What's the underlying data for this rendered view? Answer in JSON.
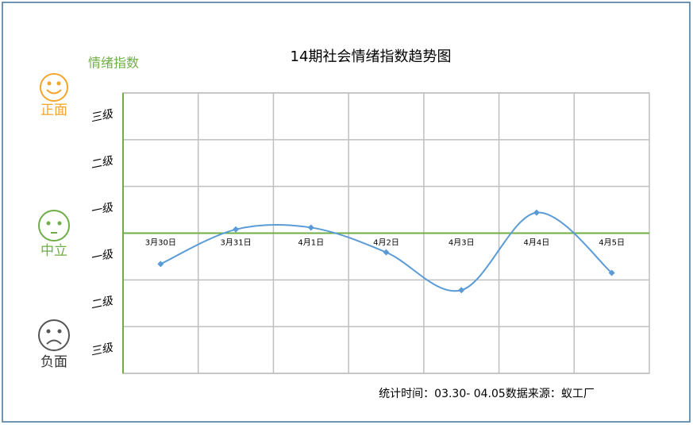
{
  "chart_data": {
    "type": "line",
    "title": "14期社会情绪指数趋势图",
    "y_label": "情绪指数",
    "side_labels": [
      "正面",
      "中立",
      "负面"
    ],
    "footnote": "统计时间：03.30- 04.05数据来源：蚁工厂",
    "categories": [
      "3月30日",
      "3月31日",
      "4月1日",
      "4月2日",
      "4月3日",
      "4月4日",
      "4月5日"
    ],
    "series": [
      {
        "name": "情绪指数",
        "color": "#5b9bd5",
        "values": [
          -0.66,
          0.08,
          0.12,
          -0.41,
          -1.22,
          0.44,
          -0.85
        ]
      }
    ],
    "ylim": [
      -3,
      3
    ],
    "yticks": [
      {
        "value": 2.5,
        "label": "三级"
      },
      {
        "value": 1.5,
        "label": "二级"
      },
      {
        "value": 0.5,
        "label": "一级"
      },
      {
        "value": -0.5,
        "label": "一级"
      },
      {
        "value": -1.5,
        "label": "二级"
      },
      {
        "value": -2.5,
        "label": "三级"
      }
    ],
    "gridlines": [
      -3,
      -2,
      -1,
      0,
      1,
      2,
      3
    ],
    "grid": true,
    "zero_line_color": "#70ad47"
  }
}
